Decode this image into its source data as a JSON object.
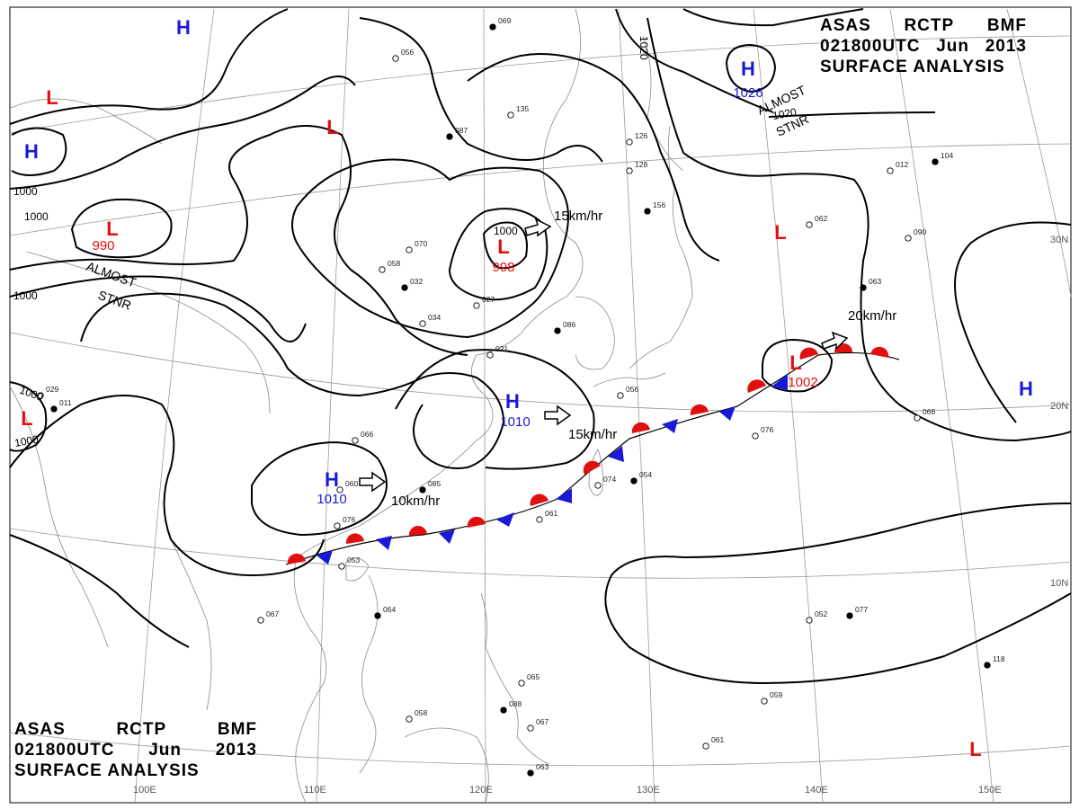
{
  "title": {
    "line1": [
      "ASAS",
      "RCTP",
      "BMF"
    ],
    "line2": [
      "021800UTC",
      "Jun",
      "2013"
    ],
    "line3": "SURFACE ANALYSIS"
  },
  "colors": {
    "high": "#1a1ad6",
    "low": "#e01010",
    "warm_front": "#e01010",
    "cold_front": "#1a1ad6",
    "isobar": "#000000",
    "grid": "#9a9a9a",
    "coast": "#8a8a8a"
  },
  "pressure_centers": [
    {
      "type": "H",
      "value": ""
    },
    {
      "type": "H",
      "value": ""
    },
    {
      "type": "H",
      "value": "1026"
    },
    {
      "type": "H",
      "value": "1010"
    },
    {
      "type": "H",
      "value": "1010"
    },
    {
      "type": "H",
      "value": ""
    },
    {
      "type": "L",
      "value": ""
    },
    {
      "type": "L",
      "value": "990"
    },
    {
      "type": "L",
      "value": ""
    },
    {
      "type": "L",
      "value": "998"
    },
    {
      "type": "L",
      "value": ""
    },
    {
      "type": "L",
      "value": "1002"
    },
    {
      "type": "L",
      "value": ""
    },
    {
      "type": "L",
      "value": ""
    }
  ],
  "isobar_labels": [
    "1000",
    "1000",
    "1000",
    "1000",
    "1000",
    "1000",
    "1020",
    "1020"
  ],
  "movements": [
    "15km/hr",
    "20km/hr",
    "15km/hr",
    "10km/hr"
  ],
  "stationary_labels": [
    {
      "line1": "ALMOST",
      "line2": "STNR"
    },
    {
      "line1": "ALMOST",
      "line2": "STNR"
    }
  ],
  "longitude_labels": [
    "100E",
    "110E",
    "120E",
    "130E",
    "140E",
    "150E"
  ],
  "latitude_labels": [
    "30N",
    "20N",
    "10N"
  ],
  "station_samples": [
    "069",
    "056",
    "135",
    "087",
    "126",
    "128",
    "156",
    "058",
    "012",
    "104",
    "062",
    "090",
    "063",
    "027",
    "070",
    "032",
    "034",
    "021",
    "086",
    "056",
    "029",
    "011",
    "060",
    "066",
    "085",
    "076",
    "074",
    "054",
    "061",
    "053",
    "064",
    "067",
    "052",
    "077",
    "076",
    "066",
    "118",
    "059",
    "061",
    "063",
    "067",
    "065",
    "088",
    "058"
  ]
}
